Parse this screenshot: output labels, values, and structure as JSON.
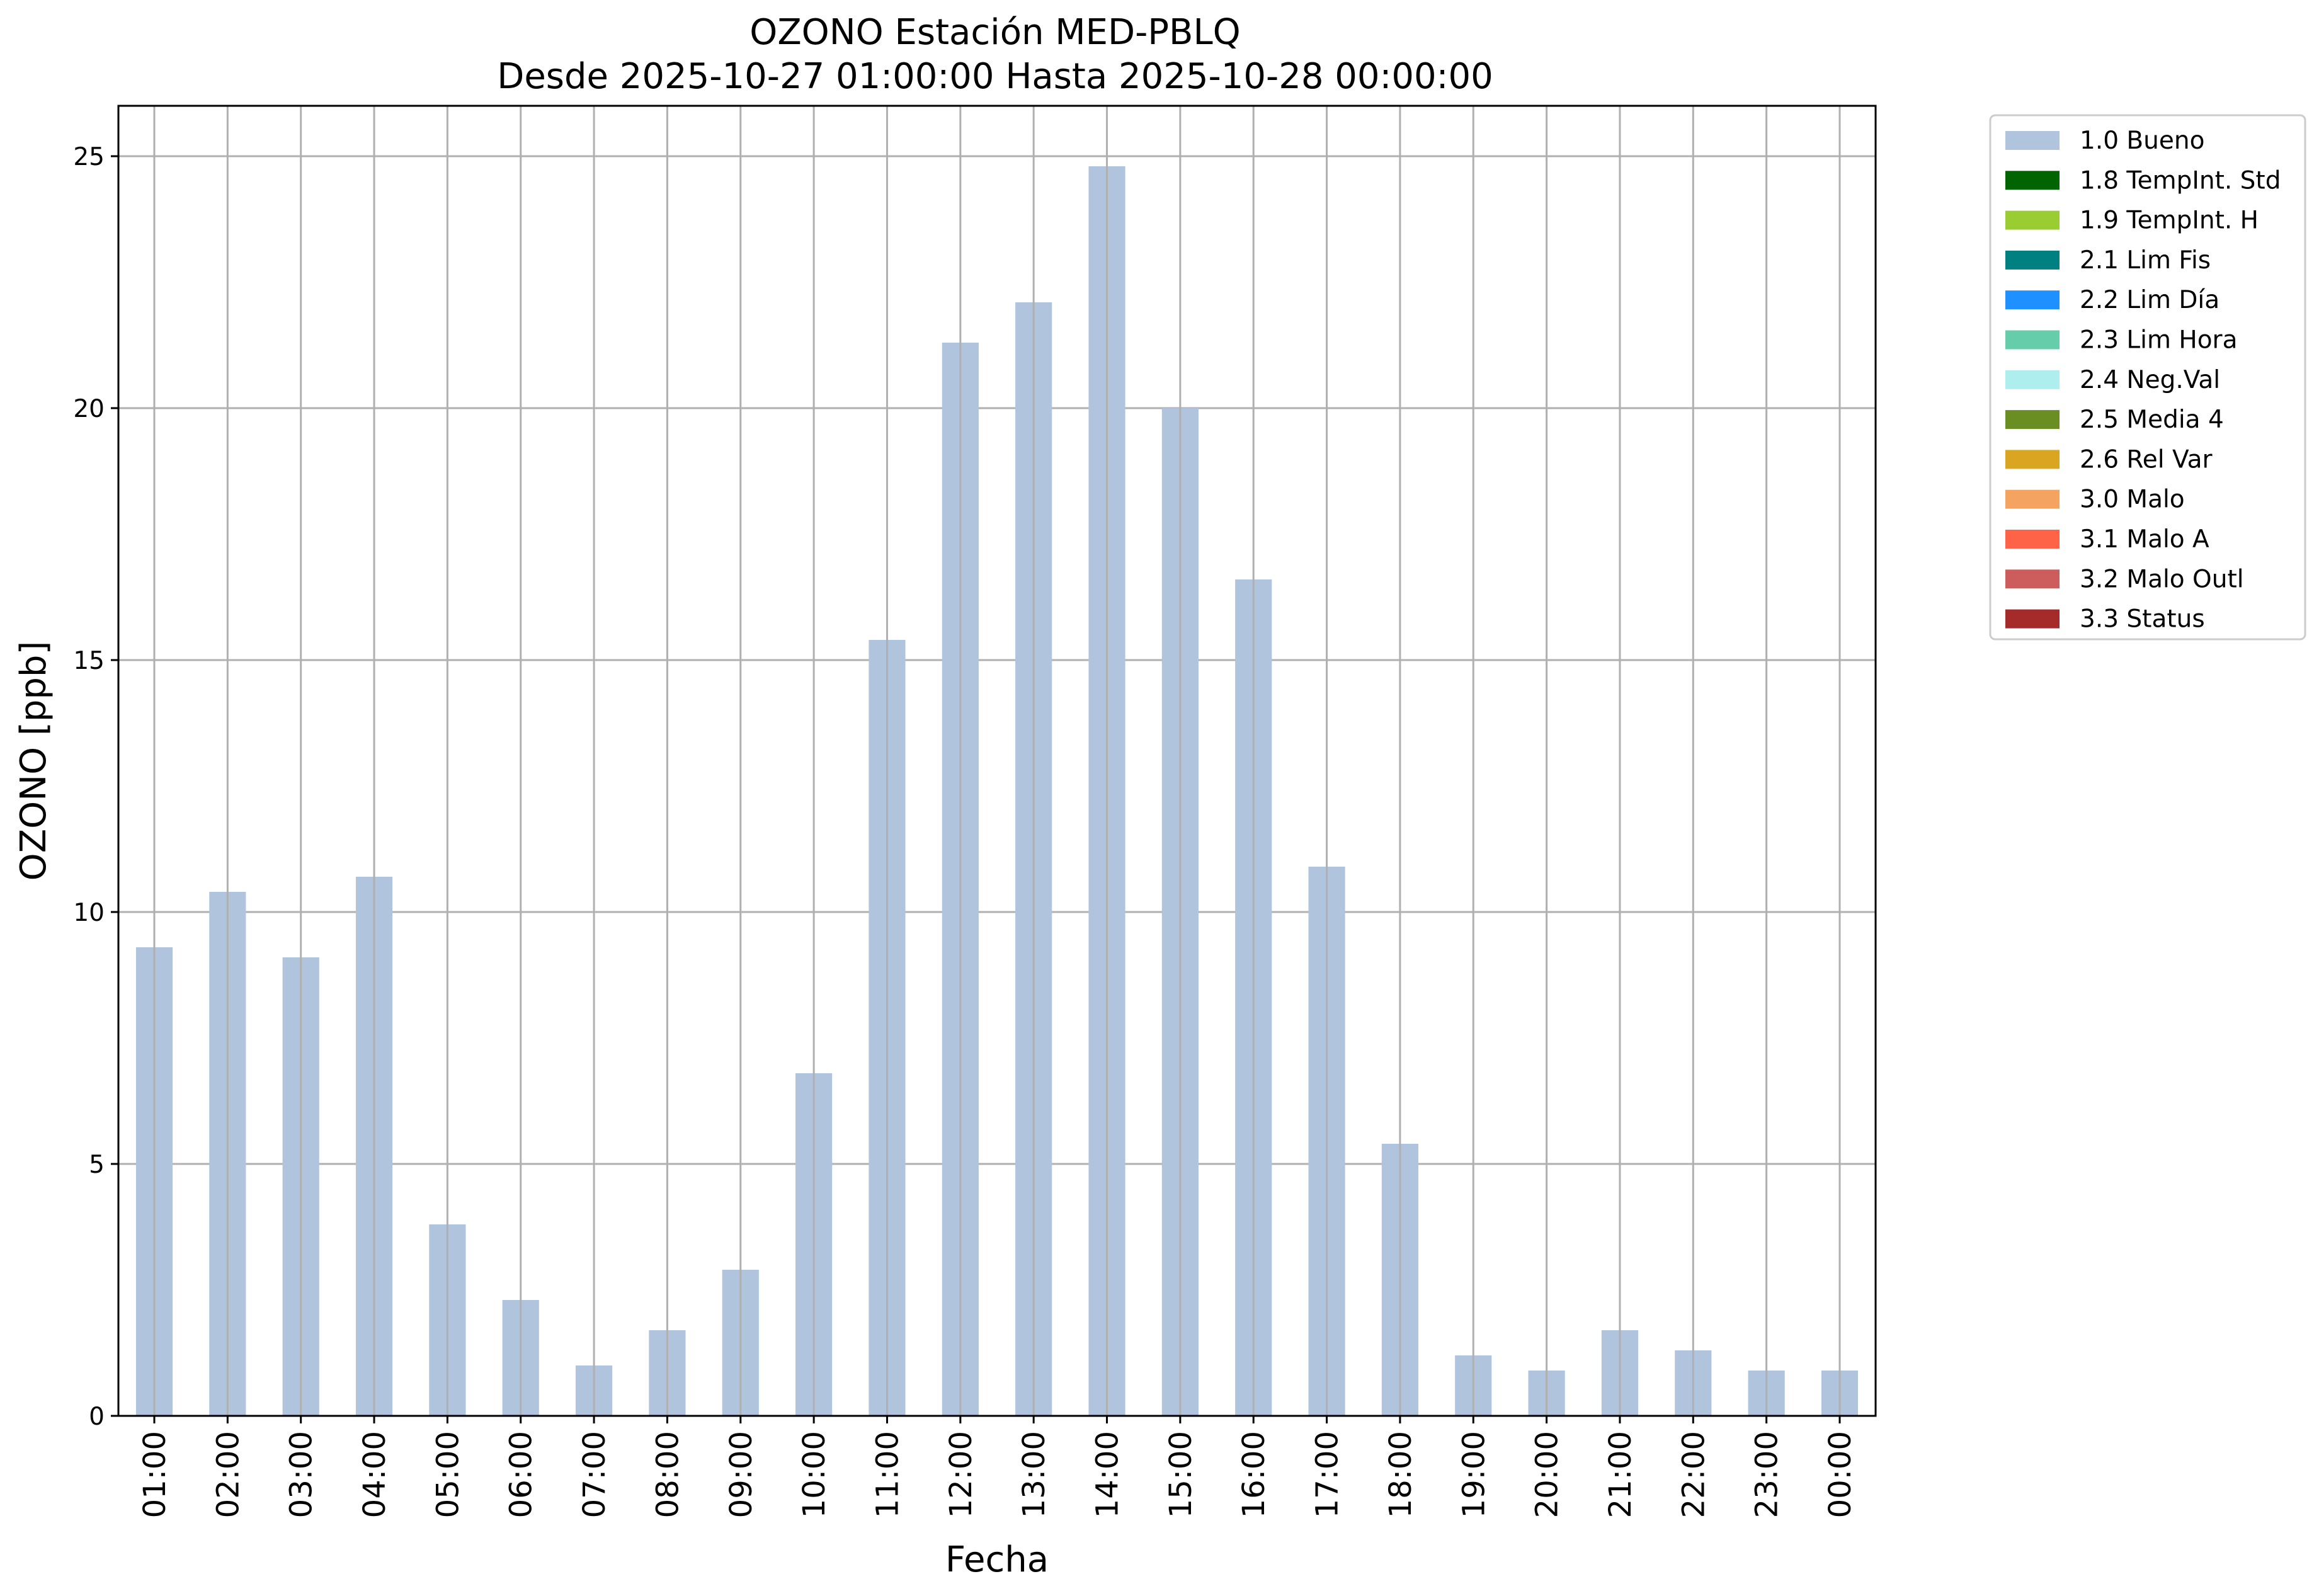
{
  "chart_data": {
    "type": "bar",
    "title": "OZONO Estación MED-PBLQ",
    "subtitle": "Desde 2025-10-27 01:00:00 Hasta 2025-10-28 00:00:00",
    "xlabel": "Fecha",
    "ylabel": "OZONO [ppb]",
    "ylim": [
      0,
      26
    ],
    "yticks": [
      0,
      5,
      10,
      15,
      20,
      25
    ],
    "grid": true,
    "legend_placement": "outside-upper-right",
    "categories": [
      "01:00",
      "02:00",
      "03:00",
      "04:00",
      "05:00",
      "06:00",
      "07:00",
      "08:00",
      "09:00",
      "10:00",
      "11:00",
      "12:00",
      "13:00",
      "14:00",
      "15:00",
      "16:00",
      "17:00",
      "18:00",
      "19:00",
      "20:00",
      "21:00",
      "22:00",
      "23:00",
      "00:00"
    ],
    "series": [
      {
        "name": "1.0 Bueno",
        "color": "#b0c4de",
        "values": [
          9.3,
          10.4,
          9.1,
          10.7,
          3.8,
          2.3,
          1.0,
          1.7,
          2.9,
          6.8,
          15.4,
          21.3,
          22.1,
          24.8,
          20.0,
          16.6,
          10.9,
          5.4,
          1.2,
          0.9,
          1.7,
          1.3,
          0.9,
          0.9
        ]
      }
    ],
    "legend": [
      {
        "label": "1.0 Bueno",
        "color": "#b0c4de"
      },
      {
        "label": "1.8 TempInt. Std",
        "color": "#006400"
      },
      {
        "label": "1.9 TempInt. H",
        "color": "#9acd32"
      },
      {
        "label": "2.1 Lim Fis",
        "color": "#008080"
      },
      {
        "label": "2.2 Lim Día",
        "color": "#1e90ff"
      },
      {
        "label": "2.3 Lim Hora",
        "color": "#66cdaa"
      },
      {
        "label": "2.4 Neg.Val",
        "color": "#afeeee"
      },
      {
        "label": "2.5 Media 4",
        "color": "#6b8e23"
      },
      {
        "label": "2.6 Rel Var",
        "color": "#daa520"
      },
      {
        "label": "3.0 Malo",
        "color": "#f4a460"
      },
      {
        "label": "3.1 Malo A",
        "color": "#ff6347"
      },
      {
        "label": "3.2 Malo Outl",
        "color": "#cd5c5c"
      },
      {
        "label": "3.3 Status",
        "color": "#a52a2a"
      }
    ]
  }
}
